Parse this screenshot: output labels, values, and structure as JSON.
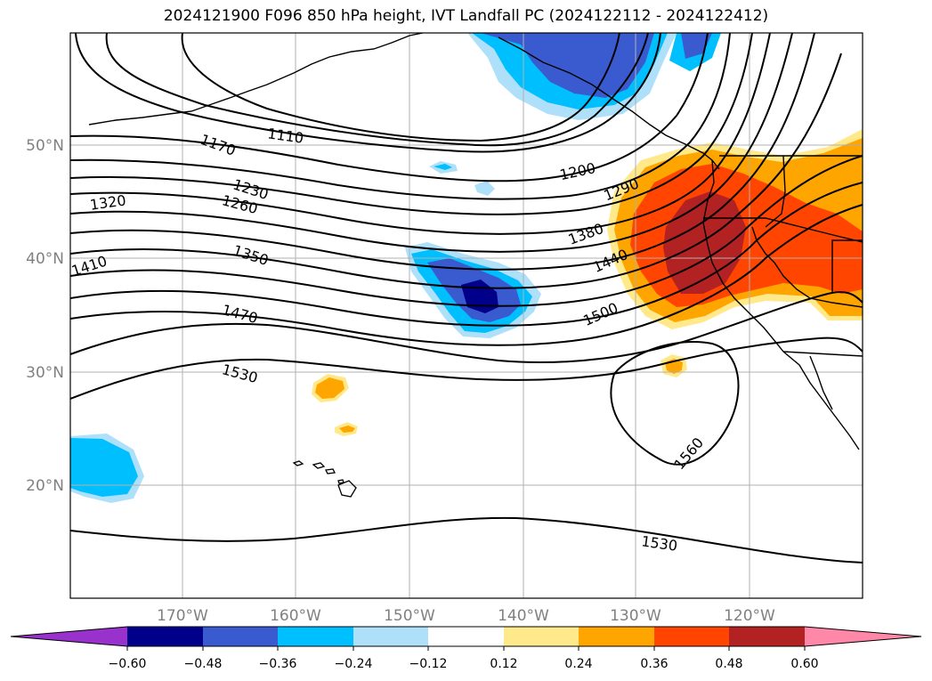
{
  "title": "2024121900 F096 850 hPa height, IVT Landfall PC (2024122112 - 2024122412)",
  "lat_labels": [
    "50°N",
    "40°N",
    "30°N",
    "20°N"
  ],
  "lon_labels": [
    "170°W",
    "160°W",
    "150°W",
    "140°W",
    "130°W",
    "120°W"
  ],
  "contour_labels": [
    "1110",
    "1170",
    "1200",
    "1230",
    "1260",
    "1290",
    "1320",
    "1350",
    "1380",
    "1410",
    "1440",
    "1470",
    "1500",
    "1530",
    "1560",
    "1530"
  ],
  "colorbar": {
    "ticks": [
      "−0.60",
      "−0.48",
      "−0.36",
      "−0.24",
      "−0.12",
      "0.12",
      "0.24",
      "0.36",
      "0.48",
      "0.60"
    ],
    "colors": [
      "#9932cc",
      "#00008b",
      "#3a5bd0",
      "#00bfff",
      "#aee0fa",
      "#ffffff",
      "#ffe98a",
      "#ffa500",
      "#ff4500",
      "#b22222",
      "#ff88a8"
    ]
  }
}
